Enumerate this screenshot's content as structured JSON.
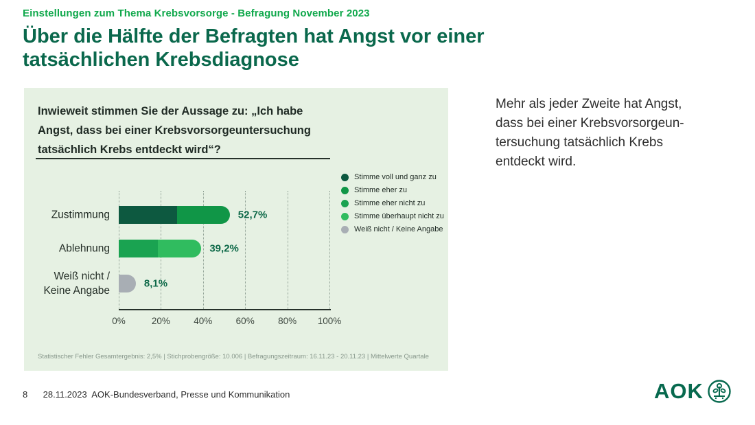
{
  "slide": {
    "eyebrow": "Einstellungen zum Thema Krebsvorsorge - Befragung November 2023",
    "title": "Über die Hälfte der Befragten hat Angst vor einer\ntatsächlichen Krebsdiagnose"
  },
  "chart_panel": {
    "question": "Inwieweit stimmen Sie der Aussage zu: „Ich habe\nAngst, dass bei einer Krebsvorsorgeuntersuchung\ntatsächlich Krebs entdeckt wird“?",
    "footnote": "Statistischer Fehler Gesamtergebnis: 2,5% | Stichprobengröße: 10.006 | Befragungszeitraum: 16.11.23 - 20.11.23 | Mittelwerte Quartale"
  },
  "chart_data": {
    "type": "bar",
    "orientation": "horizontal",
    "stacked": true,
    "title": "Inwieweit stimmen Sie der Aussage zu: „Ich habe Angst, dass bei einer Krebsvorsorgeuntersuchung tatsächlich Krebs entdeckt wird“?",
    "categories": [
      "Zustimmung",
      "Ablehnung",
      "Weiß nicht /\nKeine Angabe"
    ],
    "bar_total_values": [
      52.7,
      39.2,
      8.1
    ],
    "bar_total_labels": [
      "52,7%",
      "39,2%",
      "8,1%"
    ],
    "bars": [
      {
        "category": "Zustimmung",
        "segments": [
          {
            "legend": "Stimme voll und ganz zu",
            "value_est_pct": 27.7
          },
          {
            "legend": "Stimme eher zu",
            "value_est_pct": 25.0
          }
        ]
      },
      {
        "category": "Ablehnung",
        "segments": [
          {
            "legend": "Stimme eher nicht zu",
            "value_est_pct": 18.6
          },
          {
            "legend": "Stimme überhaupt nicht zu",
            "value_est_pct": 20.6
          }
        ]
      },
      {
        "category": "Weiß nicht /\nKeine Angabe",
        "segments": [
          {
            "legend": "Weiß nicht / Keine Angabe",
            "value_est_pct": 8.1
          }
        ]
      }
    ],
    "legend": [
      {
        "label": "Stimme voll und ganz zu",
        "color": "#0d5940"
      },
      {
        "label": "Stimme eher zu",
        "color": "#109647"
      },
      {
        "label": "Stimme eher nicht zu",
        "color": "#1aa351"
      },
      {
        "label": "Stimme überhaupt nicht zu",
        "color": "#30bc5f"
      },
      {
        "label": "Weiß nicht / Keine Angabe",
        "color": "#a8aeb4"
      }
    ],
    "x_ticks": [
      "0%",
      "20%",
      "40%",
      "60%",
      "80%",
      "100%"
    ],
    "x_tick_values": [
      0,
      20,
      40,
      60,
      80,
      100
    ],
    "xlim": [
      0,
      100
    ],
    "grid": "vertical-dotted",
    "legend_position": "right"
  },
  "takeaway": "Mehr als jeder Zweite hat Angst,\ndass bei einer Krebsvorsorgeun-\ntersuchung tatsächlich Krebs\nentdeckt wird.",
  "footer": {
    "page": "8",
    "date": "28.11.2023",
    "org": "AOK-Bundesverband, Presse und Kommunikation",
    "logo_text": "AOK"
  },
  "colors": {
    "eyebrow_green": "#0fa84b",
    "title_green": "#0a684c",
    "panel_background": "#e6f1e3",
    "value_label_green": "#0c6847",
    "logo_green": "#07694e",
    "gray_bar": "#a8aeb4"
  }
}
